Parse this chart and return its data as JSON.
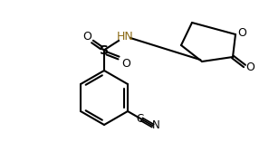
{
  "background_color": "#ffffff",
  "line_color": "#000000",
  "atom_color": "#000000",
  "N_color": "#8B6914",
  "O_color": "#ff0000",
  "S_color": "#000000",
  "CN_color": "#000000",
  "figsize": [
    2.97,
    1.78
  ],
  "dpi": 100
}
